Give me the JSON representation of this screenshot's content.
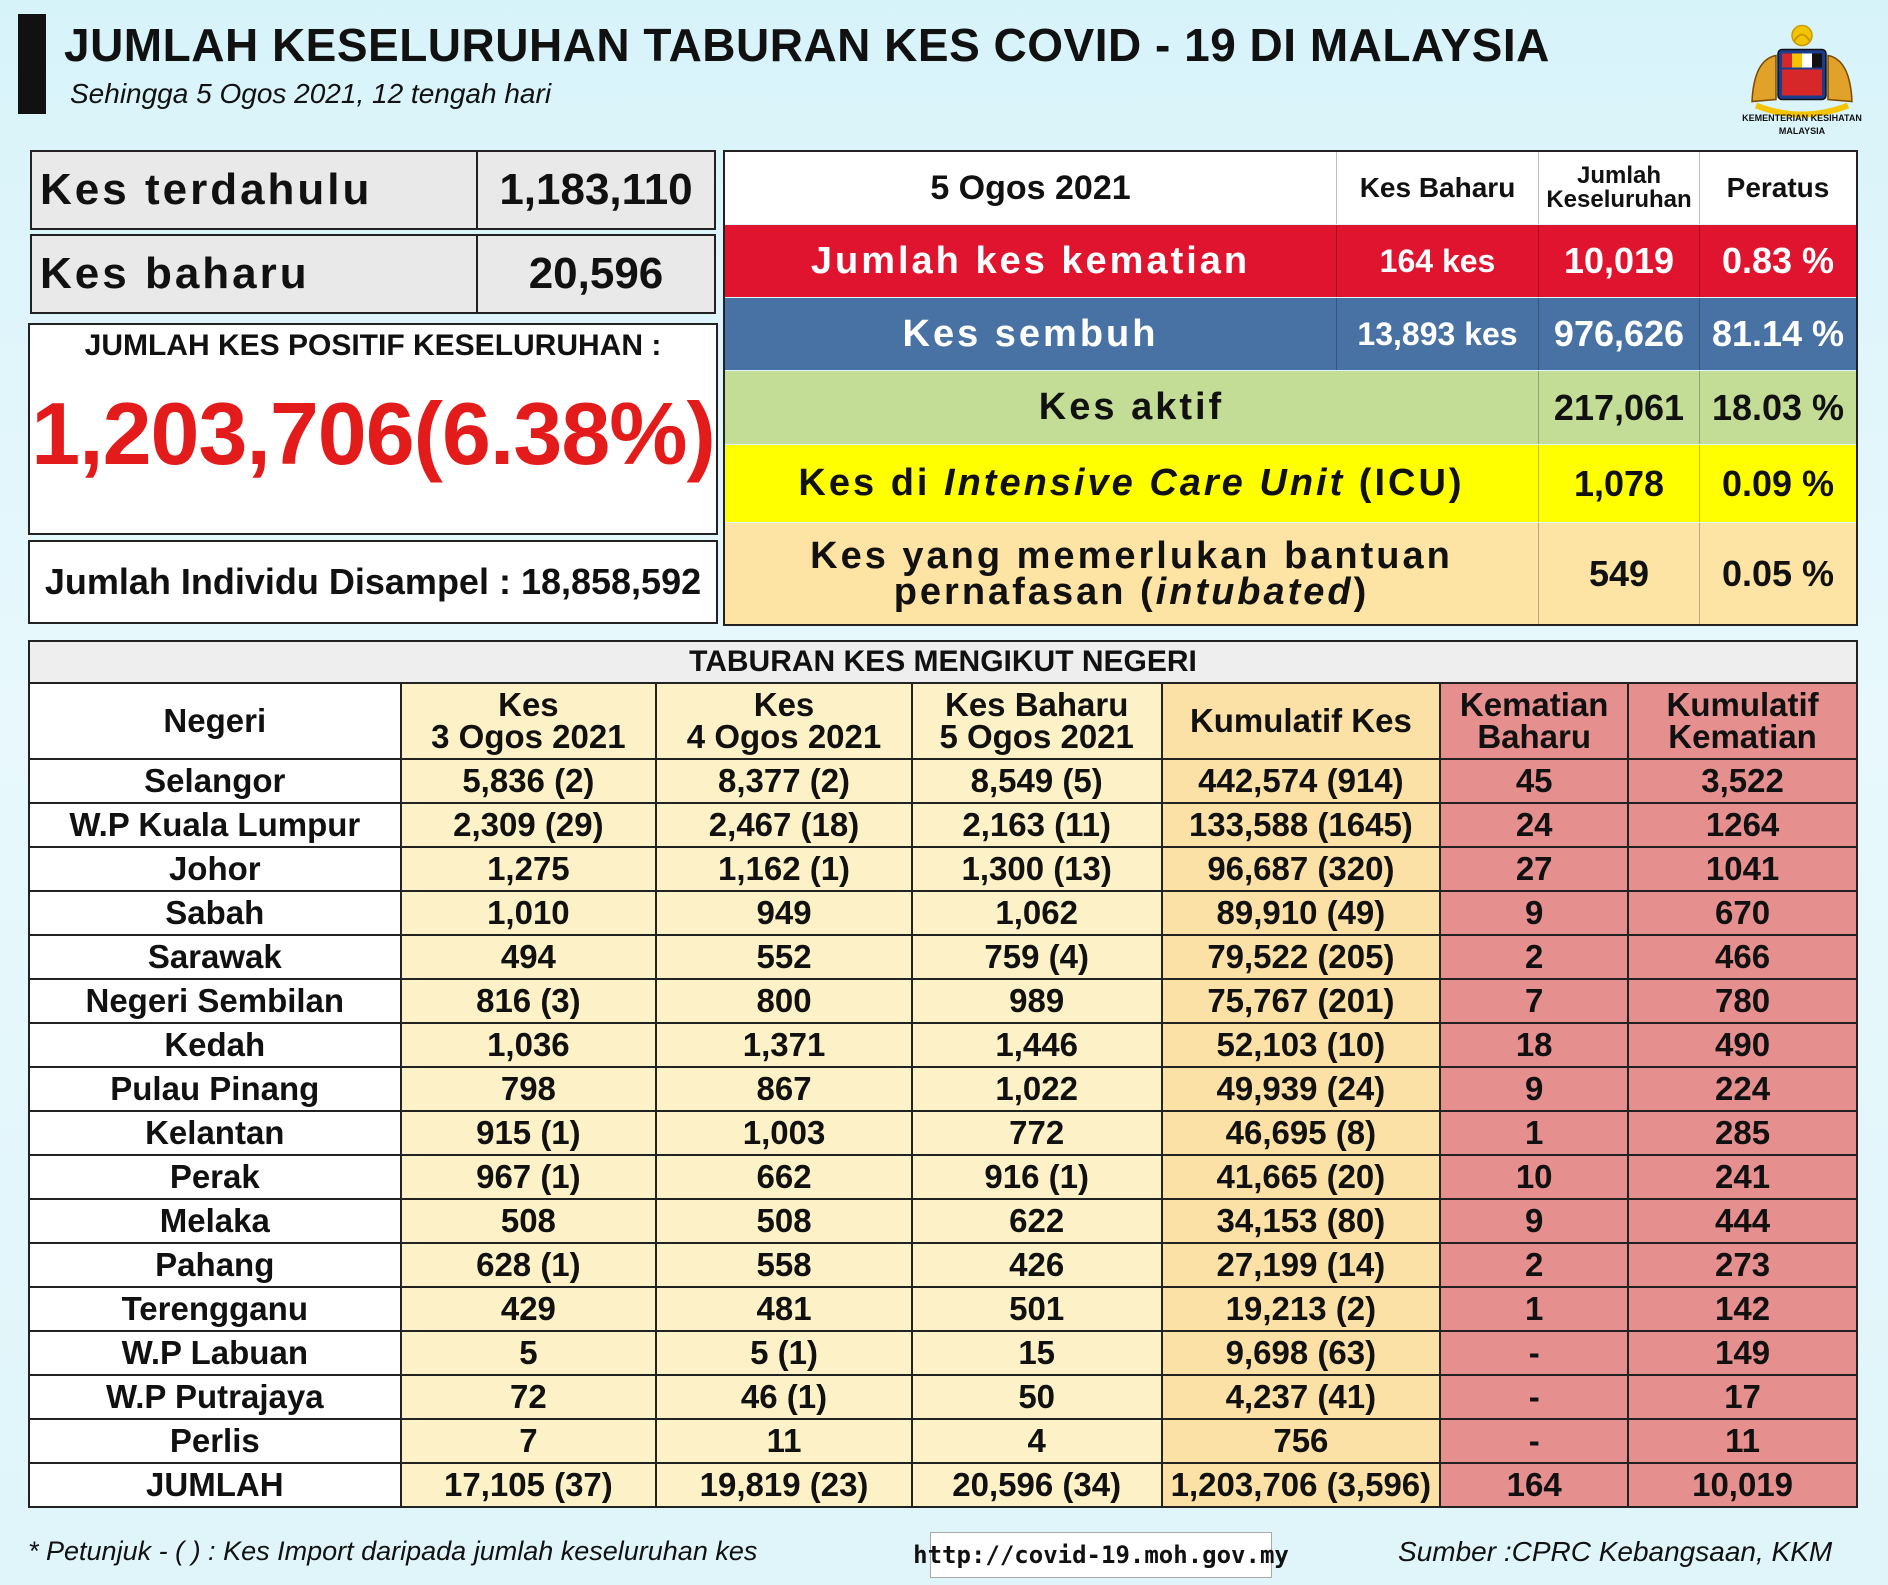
{
  "header": {
    "title": "JUMLAH KESELURUHAN TABURAN KES COVID - 19 DI MALAYSIA",
    "subtitle": "Sehingga 5 Ogos 2021, 12 tengah hari",
    "logo_text_line1": "KEMENTERIAN KESIHATAN",
    "logo_text_line2": "MALAYSIA"
  },
  "left_panel": {
    "previous_label": "Kes terdahulu",
    "previous_value": "1,183,110",
    "new_label": "Kes baharu",
    "new_value": "20,596",
    "total_label": "JUMLAH KES POSITIF KESELURUHAN :",
    "total_value": "1,203,706(6.38%)",
    "sampled": "Jumlah Individu Disampel : 18,858,592"
  },
  "summary": {
    "header": {
      "date": "5 Ogos 2021",
      "new": "Kes Baharu",
      "total_line1": "Jumlah",
      "total_line2": "Keseluruhan",
      "pct": "Peratus"
    },
    "deaths": {
      "label": "Jumlah kes kematian",
      "new": "164 kes",
      "total": "10,019",
      "pct": "0.83 %",
      "color": "#e0142f"
    },
    "recovered": {
      "label": "Kes sembuh",
      "new": "13,893 kes",
      "total": "976,626",
      "pct": "81.14 %",
      "color": "#4872a4"
    },
    "active": {
      "label": "Kes aktif",
      "total": "217,061",
      "pct": "18.03 %",
      "color": "#c3dd96"
    },
    "icu": {
      "label_pre": "Kes di ",
      "label_italic": "Intensive Care Unit",
      "label_post": " (ICU)",
      "total": "1,078",
      "pct": "0.09 %",
      "color": "#ffff00"
    },
    "intubated": {
      "label_line1": "Kes yang memerlukan bantuan",
      "label_line2_pre": "pernafasan (",
      "label_line2_italic": "intubated",
      "label_line2_post": ")",
      "total": "549",
      "pct": "0.05 %",
      "color": "#fde3a4"
    }
  },
  "state_table": {
    "title": "TABURAN KES MENGIKUT NEGERI",
    "headers": {
      "state": "Negeri",
      "aug3_l1": "Kes",
      "aug3_l2": "3 Ogos 2021",
      "aug4_l1": "Kes",
      "aug4_l2": "4 Ogos 2021",
      "aug5_l1": "Kes Baharu",
      "aug5_l2": "5 Ogos 2021",
      "cumulative": "Kumulatif Kes",
      "deaths_new_l1": "Kematian",
      "deaths_new_l2": "Baharu",
      "deaths_cum_l1": "Kumulatif",
      "deaths_cum_l2": "Kematian"
    },
    "rows": [
      [
        "Selangor",
        "5,836 (2)",
        "8,377 (2)",
        "8,549 (5)",
        "442,574 (914)",
        "45",
        "3,522"
      ],
      [
        "W.P Kuala Lumpur",
        "2,309 (29)",
        "2,467 (18)",
        "2,163 (11)",
        "133,588 (1645)",
        "24",
        "1264"
      ],
      [
        "Johor",
        "1,275",
        "1,162 (1)",
        "1,300 (13)",
        "96,687 (320)",
        "27",
        "1041"
      ],
      [
        "Sabah",
        "1,010",
        "949",
        "1,062",
        "89,910 (49)",
        "9",
        "670"
      ],
      [
        "Sarawak",
        "494",
        "552",
        "759 (4)",
        "79,522 (205)",
        "2",
        "466"
      ],
      [
        "Negeri Sembilan",
        "816 (3)",
        "800",
        "989",
        "75,767 (201)",
        "7",
        "780"
      ],
      [
        "Kedah",
        "1,036",
        "1,371",
        "1,446",
        "52,103 (10)",
        "18",
        "490"
      ],
      [
        "Pulau Pinang",
        "798",
        "867",
        "1,022",
        "49,939 (24)",
        "9",
        "224"
      ],
      [
        "Kelantan",
        "915 (1)",
        "1,003",
        "772",
        "46,695 (8)",
        "1",
        "285"
      ],
      [
        "Perak",
        "967 (1)",
        "662",
        "916 (1)",
        "41,665 (20)",
        "10",
        "241"
      ],
      [
        "Melaka",
        "508",
        "508",
        "622",
        "34,153 (80)",
        "9",
        "444"
      ],
      [
        "Pahang",
        "628 (1)",
        "558",
        "426",
        "27,199 (14)",
        "2",
        "273"
      ],
      [
        "Terengganu",
        "429",
        "481",
        "501",
        "19,213 (2)",
        "1",
        "142"
      ],
      [
        "W.P Labuan",
        "5",
        "5 (1)",
        "15",
        "9,698 (63)",
        "-",
        "149"
      ],
      [
        "W.P Putrajaya",
        "72",
        "46 (1)",
        "50",
        "4,237 (41)",
        "-",
        "17"
      ],
      [
        "Perlis",
        "7",
        "11",
        "4",
        "756",
        "-",
        "11"
      ],
      [
        "JUMLAH",
        "17,105 (37)",
        "19,819 (23)",
        "20,596 (34)",
        "1,203,706 (3,596)",
        "164",
        "10,019"
      ]
    ]
  },
  "footer": {
    "note": "* Petunjuk  - (  ) : Kes Import daripada jumlah keseluruhan kes",
    "url": "http://covid-19.moh.gov.my",
    "source": "Sumber :CPRC Kebangsaan,  KKM"
  }
}
